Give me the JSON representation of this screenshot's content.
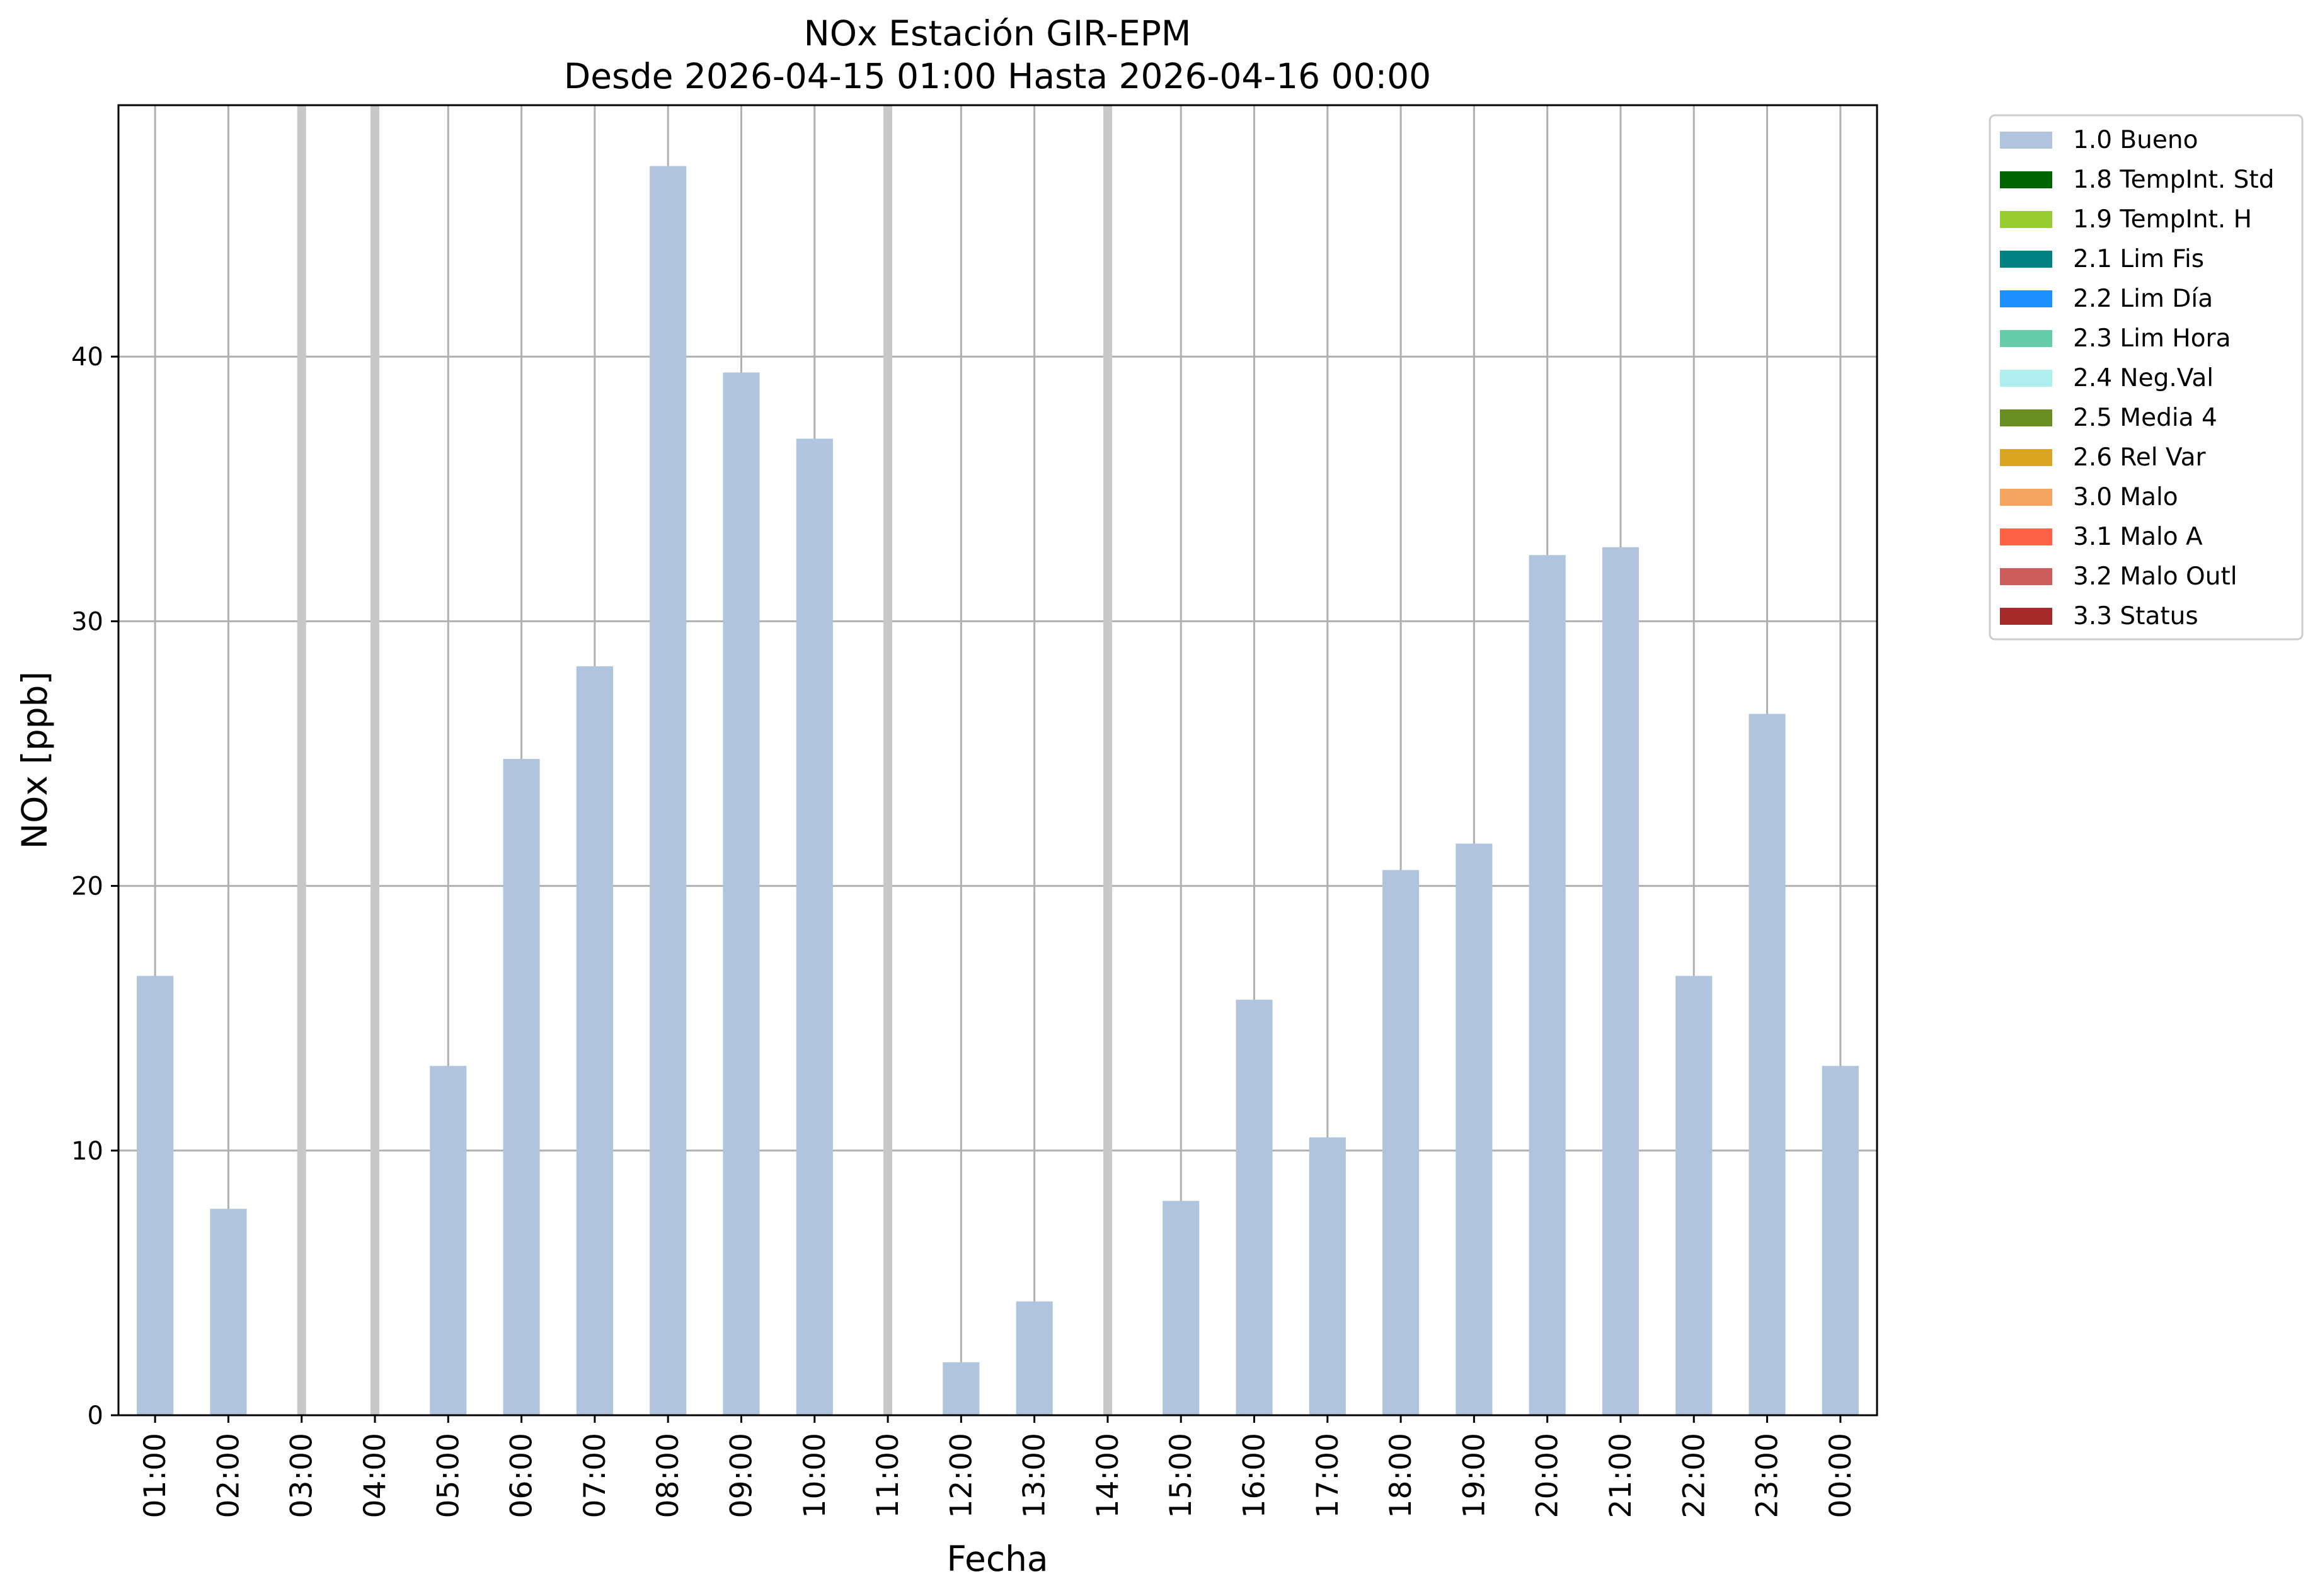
{
  "chart_data": {
    "type": "bar",
    "title": "NOx Estación GIR-EPM",
    "subtitle": "Desde 2026-04-15 01:00 Hasta 2026-04-16 00:00",
    "xlabel": "Fecha",
    "ylabel": "NOx [ppb]",
    "ylim": [
      0,
      49.5
    ],
    "yticks": [
      0,
      10,
      20,
      30,
      40
    ],
    "grid": true,
    "legend_position": "outside-top-right",
    "categories": [
      "01:00",
      "02:00",
      "03:00",
      "04:00",
      "05:00",
      "06:00",
      "07:00",
      "08:00",
      "09:00",
      "10:00",
      "11:00",
      "12:00",
      "13:00",
      "14:00",
      "15:00",
      "16:00",
      "17:00",
      "18:00",
      "19:00",
      "20:00",
      "21:00",
      "22:00",
      "23:00",
      "00:00"
    ],
    "missing_markers": [
      "03:00",
      "04:00",
      "11:00",
      "14:00"
    ],
    "series": [
      {
        "name": "1.0 Bueno",
        "color": "#b0c4de",
        "values": [
          16.6,
          7.8,
          null,
          null,
          13.2,
          24.8,
          28.3,
          47.2,
          39.4,
          36.9,
          null,
          2.0,
          4.3,
          null,
          8.1,
          15.7,
          10.5,
          20.6,
          21.6,
          32.5,
          32.8,
          16.6,
          26.5,
          13.2
        ]
      }
    ],
    "legend": [
      {
        "label": "1.0 Bueno",
        "color": "#b0c4de"
      },
      {
        "label": "1.8 TempInt. Std",
        "color": "#006400"
      },
      {
        "label": "1.9 TempInt. H",
        "color": "#9acd32"
      },
      {
        "label": "2.1 Lim Fis",
        "color": "#008080"
      },
      {
        "label": "2.2 Lim Día",
        "color": "#1e90ff"
      },
      {
        "label": "2.3 Lim Hora",
        "color": "#66cdaa"
      },
      {
        "label": "2.4 Neg.Val",
        "color": "#afeeee"
      },
      {
        "label": "2.5 Media 4",
        "color": "#6b8e23"
      },
      {
        "label": "2.6 Rel Var",
        "color": "#daa520"
      },
      {
        "label": "3.0 Malo",
        "color": "#f4a460"
      },
      {
        "label": "3.1 Malo A",
        "color": "#ff6347"
      },
      {
        "label": "3.2 Malo Outl",
        "color": "#cd5c5c"
      },
      {
        "label": "3.3 Status",
        "color": "#a52a2a"
      }
    ]
  }
}
